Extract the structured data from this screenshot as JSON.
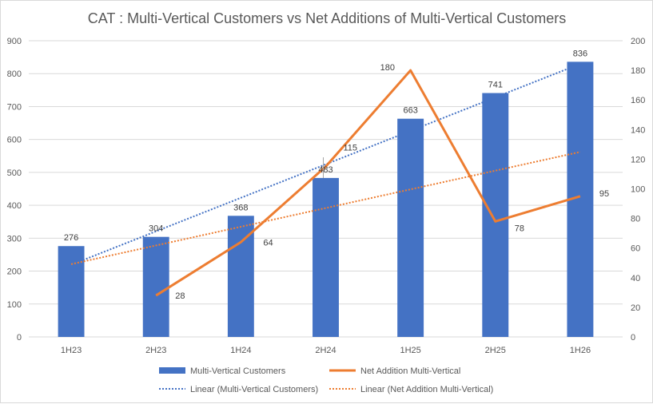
{
  "chart_data": {
    "type": "bar",
    "title": "CAT : Multi-Vertical Customers vs Net Additions of Multi-Vertical Customers",
    "categories": [
      "1H23",
      "2H23",
      "1H24",
      "2H24",
      "1H25",
      "2H25",
      "1H26"
    ],
    "series": [
      {
        "name": "Multi-Vertical Customers",
        "type": "bar",
        "axis": "left",
        "color": "#4472C4",
        "values": [
          276,
          304,
          368,
          483,
          663,
          741,
          836
        ],
        "labels": [
          "276",
          "304",
          "368",
          "483",
          "663",
          "741",
          "836"
        ]
      },
      {
        "name": "Net Addition Multi-Vertical",
        "type": "line",
        "axis": "right",
        "color": "#ED7D31",
        "values": [
          null,
          28,
          64,
          115,
          180,
          78,
          95
        ],
        "labels": [
          "",
          "28",
          "64",
          "115",
          "180",
          "78",
          "95"
        ]
      },
      {
        "name": "Linear (Multi-Vertical Customers)",
        "type": "trendline",
        "axis": "left",
        "color": "#4472C4",
        "of": 0
      },
      {
        "name": "Linear (Net Addition Multi-Vertical)",
        "type": "trendline",
        "axis": "right",
        "color": "#ED7D31",
        "of": 1
      }
    ],
    "y_left": {
      "min": 0,
      "max": 900,
      "step": 100,
      "ticks": [
        "0",
        "100",
        "200",
        "300",
        "400",
        "500",
        "600",
        "700",
        "800",
        "900"
      ]
    },
    "y_right": {
      "min": 0,
      "max": 200,
      "step": 20,
      "ticks": [
        "0",
        "20",
        "40",
        "60",
        "80",
        "100",
        "120",
        "140",
        "160",
        "180",
        "200"
      ]
    },
    "grid": true,
    "legend_position": "bottom"
  }
}
